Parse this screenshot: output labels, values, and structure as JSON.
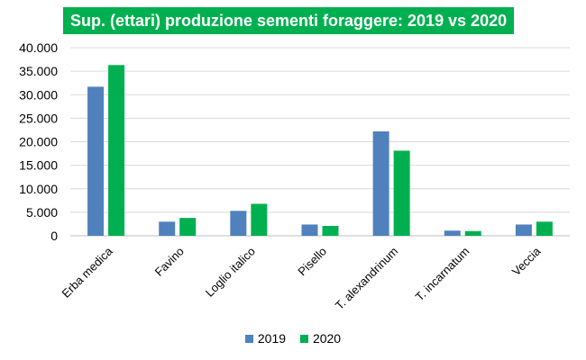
{
  "chart_data": {
    "type": "bar",
    "title": "Sup. (ettari) produzione sementi foraggere: 2019 vs 2020",
    "categories": [
      "Erba medica",
      "Favino",
      "Loglio italico",
      "Pisello",
      "T. alexandrinum",
      "T. incarnatum",
      "Veccia"
    ],
    "series": [
      {
        "name": "2019",
        "color": "#4f81bd",
        "values": [
          31700,
          3000,
          5300,
          2400,
          22200,
          1100,
          2400
        ]
      },
      {
        "name": "2020",
        "color": "#00b050",
        "values": [
          36300,
          3800,
          6800,
          2100,
          18100,
          1000,
          3000
        ]
      }
    ],
    "ylim": [
      0,
      40000
    ],
    "yticks": [
      0,
      5000,
      10000,
      15000,
      20000,
      25000,
      30000,
      35000,
      40000
    ],
    "ytick_labels": [
      "0",
      "5.000",
      "10.000",
      "15.000",
      "20.000",
      "25.000",
      "30.000",
      "35.000",
      "40.000"
    ],
    "grid": true,
    "legend_position": "bottom"
  }
}
